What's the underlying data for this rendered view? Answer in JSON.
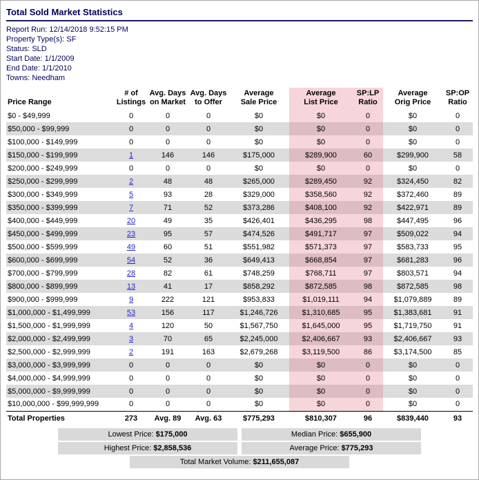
{
  "title": "Total Sold Market Statistics",
  "meta": [
    {
      "label": "Report Run:",
      "value": "12/14/2018 9:52:15 PM"
    },
    {
      "label": "Property Type(s):",
      "value": "SF"
    },
    {
      "label": "Status:",
      "value": "SLD"
    },
    {
      "label": "Start Date:",
      "value": "1/1/2009"
    },
    {
      "label": "End Date:",
      "value": "1/1/2010"
    },
    {
      "label": "Towns:",
      "value": "Needham"
    }
  ],
  "table": {
    "headers": [
      "Price Range",
      "# of\nListings",
      "Avg. Days\non Market",
      "Avg. Days\nto Offer",
      "Average\nSale Price",
      "Average\nList Price",
      "SP:LP\nRatio",
      "Average\nOrig Price",
      "SP:OP\nRatio"
    ],
    "rows": [
      {
        "range": "$0 - $49,999",
        "listings": "0",
        "link": false,
        "dom": "0",
        "dto": "0",
        "avg_sale": "$0",
        "avg_list": "$0",
        "sp_lp": "0",
        "avg_orig": "$0",
        "sp_op": "0"
      },
      {
        "range": "$50,000 - $99,999",
        "listings": "0",
        "link": false,
        "dom": "0",
        "dto": "0",
        "avg_sale": "$0",
        "avg_list": "$0",
        "sp_lp": "0",
        "avg_orig": "$0",
        "sp_op": "0"
      },
      {
        "range": "$100,000 - $149,999",
        "listings": "0",
        "link": false,
        "dom": "0",
        "dto": "0",
        "avg_sale": "$0",
        "avg_list": "$0",
        "sp_lp": "0",
        "avg_orig": "$0",
        "sp_op": "0"
      },
      {
        "range": "$150,000 - $199,999",
        "listings": "1",
        "link": true,
        "dom": "146",
        "dto": "146",
        "avg_sale": "$175,000",
        "avg_list": "$289,900",
        "sp_lp": "60",
        "avg_orig": "$299,900",
        "sp_op": "58"
      },
      {
        "range": "$200,000 - $249,999",
        "listings": "0",
        "link": false,
        "dom": "0",
        "dto": "0",
        "avg_sale": "$0",
        "avg_list": "$0",
        "sp_lp": "0",
        "avg_orig": "$0",
        "sp_op": "0"
      },
      {
        "range": "$250,000 - $299,999",
        "listings": "2",
        "link": true,
        "dom": "48",
        "dto": "48",
        "avg_sale": "$265,000",
        "avg_list": "$289,450",
        "sp_lp": "92",
        "avg_orig": "$324,450",
        "sp_op": "82"
      },
      {
        "range": "$300,000 - $349,999",
        "listings": "5",
        "link": true,
        "dom": "93",
        "dto": "28",
        "avg_sale": "$329,000",
        "avg_list": "$358,560",
        "sp_lp": "92",
        "avg_orig": "$372,460",
        "sp_op": "89"
      },
      {
        "range": "$350,000 - $399,999",
        "listings": "7",
        "link": true,
        "dom": "71",
        "dto": "52",
        "avg_sale": "$373,286",
        "avg_list": "$408,100",
        "sp_lp": "92",
        "avg_orig": "$422,971",
        "sp_op": "89"
      },
      {
        "range": "$400,000 - $449,999",
        "listings": "20",
        "link": true,
        "dom": "49",
        "dto": "35",
        "avg_sale": "$426,401",
        "avg_list": "$436,295",
        "sp_lp": "98",
        "avg_orig": "$447,495",
        "sp_op": "96"
      },
      {
        "range": "$450,000 - $499,999",
        "listings": "23",
        "link": true,
        "dom": "95",
        "dto": "57",
        "avg_sale": "$474,526",
        "avg_list": "$491,717",
        "sp_lp": "97",
        "avg_orig": "$509,022",
        "sp_op": "94"
      },
      {
        "range": "$500,000 - $599,999",
        "listings": "49",
        "link": true,
        "dom": "60",
        "dto": "51",
        "avg_sale": "$551,982",
        "avg_list": "$571,373",
        "sp_lp": "97",
        "avg_orig": "$583,733",
        "sp_op": "95"
      },
      {
        "range": "$600,000 - $699,999",
        "listings": "54",
        "link": true,
        "dom": "52",
        "dto": "36",
        "avg_sale": "$649,413",
        "avg_list": "$668,854",
        "sp_lp": "97",
        "avg_orig": "$681,283",
        "sp_op": "96"
      },
      {
        "range": "$700,000 - $799,999",
        "listings": "28",
        "link": true,
        "dom": "82",
        "dto": "61",
        "avg_sale": "$748,259",
        "avg_list": "$768,711",
        "sp_lp": "97",
        "avg_orig": "$803,571",
        "sp_op": "94"
      },
      {
        "range": "$800,000 - $899,999",
        "listings": "13",
        "link": true,
        "dom": "41",
        "dto": "17",
        "avg_sale": "$858,292",
        "avg_list": "$872,585",
        "sp_lp": "98",
        "avg_orig": "$872,585",
        "sp_op": "98"
      },
      {
        "range": "$900,000 - $999,999",
        "listings": "9",
        "link": true,
        "dom": "222",
        "dto": "121",
        "avg_sale": "$953,833",
        "avg_list": "$1,019,111",
        "sp_lp": "94",
        "avg_orig": "$1,079,889",
        "sp_op": "89"
      },
      {
        "range": "$1,000,000 - $1,499,999",
        "listings": "53",
        "link": true,
        "dom": "156",
        "dto": "117",
        "avg_sale": "$1,246,726",
        "avg_list": "$1,310,685",
        "sp_lp": "95",
        "avg_orig": "$1,383,681",
        "sp_op": "91"
      },
      {
        "range": "$1,500,000 - $1,999,999",
        "listings": "4",
        "link": true,
        "dom": "120",
        "dto": "50",
        "avg_sale": "$1,567,750",
        "avg_list": "$1,645,000",
        "sp_lp": "95",
        "avg_orig": "$1,719,750",
        "sp_op": "91"
      },
      {
        "range": "$2,000,000 - $2,499,999",
        "listings": "3",
        "link": true,
        "dom": "70",
        "dto": "65",
        "avg_sale": "$2,245,000",
        "avg_list": "$2,406,667",
        "sp_lp": "93",
        "avg_orig": "$2,406,667",
        "sp_op": "93"
      },
      {
        "range": "$2,500,000 - $2,999,999",
        "listings": "2",
        "link": true,
        "dom": "191",
        "dto": "163",
        "avg_sale": "$2,679,268",
        "avg_list": "$3,119,500",
        "sp_lp": "86",
        "avg_orig": "$3,174,500",
        "sp_op": "85"
      },
      {
        "range": "$3,000,000 - $3,999,999",
        "listings": "0",
        "link": false,
        "dom": "0",
        "dto": "0",
        "avg_sale": "$0",
        "avg_list": "$0",
        "sp_lp": "0",
        "avg_orig": "$0",
        "sp_op": "0"
      },
      {
        "range": "$4,000,000 - $4,999,999",
        "listings": "0",
        "link": false,
        "dom": "0",
        "dto": "0",
        "avg_sale": "$0",
        "avg_list": "$0",
        "sp_lp": "0",
        "avg_orig": "$0",
        "sp_op": "0"
      },
      {
        "range": "$5,000,000 - $9,999,999",
        "listings": "0",
        "link": false,
        "dom": "0",
        "dto": "0",
        "avg_sale": "$0",
        "avg_list": "$0",
        "sp_lp": "0",
        "avg_orig": "$0",
        "sp_op": "0"
      },
      {
        "range": "$10,000,000 - $99,999,999",
        "listings": "0",
        "link": false,
        "dom": "0",
        "dto": "0",
        "avg_sale": "$0",
        "avg_list": "$0",
        "sp_lp": "0",
        "avg_orig": "$0",
        "sp_op": "0"
      }
    ],
    "total": {
      "label": "Total Properties",
      "listings": "273",
      "dom": "Avg. 89",
      "dto": "Avg. 63",
      "avg_sale": "$775,293",
      "avg_list": "$810,307",
      "sp_lp": "96",
      "avg_orig": "$839,440",
      "sp_op": "93"
    }
  },
  "summary": {
    "lowest": {
      "label": "Lowest Price:",
      "value": "$175,000"
    },
    "median": {
      "label": "Median Price:",
      "value": "$655,900"
    },
    "highest": {
      "label": "Highest Price:",
      "value": "$2,858,536"
    },
    "average": {
      "label": "Average Price:",
      "value": "$775,293"
    },
    "volume": {
      "label": "Total Market Volume:",
      "value": "$211,655,087"
    }
  }
}
